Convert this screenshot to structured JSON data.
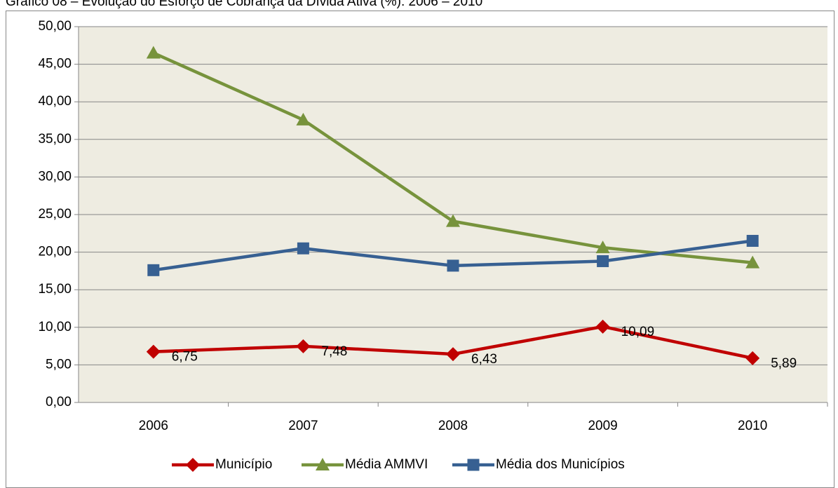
{
  "chart_data": {
    "type": "line",
    "title": "Gráfico 08 – Evolução do Esforço de Cobrança da Dívida Ativa (%): 2006 – 2010",
    "categories": [
      "2006",
      "2007",
      "2008",
      "2009",
      "2010"
    ],
    "series": [
      {
        "name": "Município",
        "color": "#c00000",
        "marker": "diamond",
        "values": [
          6.75,
          7.48,
          6.43,
          10.09,
          5.89
        ],
        "value_labels": [
          "6,75",
          "7,48",
          "6,43",
          "10,09",
          "5,89"
        ]
      },
      {
        "name": "Média AMMVI",
        "color": "#77933c",
        "marker": "triangle",
        "values": [
          46.5,
          37.6,
          24.1,
          20.6,
          18.6
        ]
      },
      {
        "name": "Média dos Municípios",
        "color": "#376092",
        "marker": "square",
        "values": [
          17.6,
          20.5,
          18.2,
          18.8,
          21.5
        ]
      }
    ],
    "ylim": [
      0,
      50
    ],
    "yticks": [
      {
        "value": 0,
        "label": "0,00"
      },
      {
        "value": 5,
        "label": "5,00"
      },
      {
        "value": 10,
        "label": "10,00"
      },
      {
        "value": 15,
        "label": "15,00"
      },
      {
        "value": 20,
        "label": "20,00"
      },
      {
        "value": 25,
        "label": "25,00"
      },
      {
        "value": 30,
        "label": "30,00"
      },
      {
        "value": 35,
        "label": "35,00"
      },
      {
        "value": 40,
        "label": "40,00"
      },
      {
        "value": 45,
        "label": "45,00"
      },
      {
        "value": 50,
        "label": "50,00"
      }
    ],
    "grid": true,
    "legend": "bottom"
  }
}
